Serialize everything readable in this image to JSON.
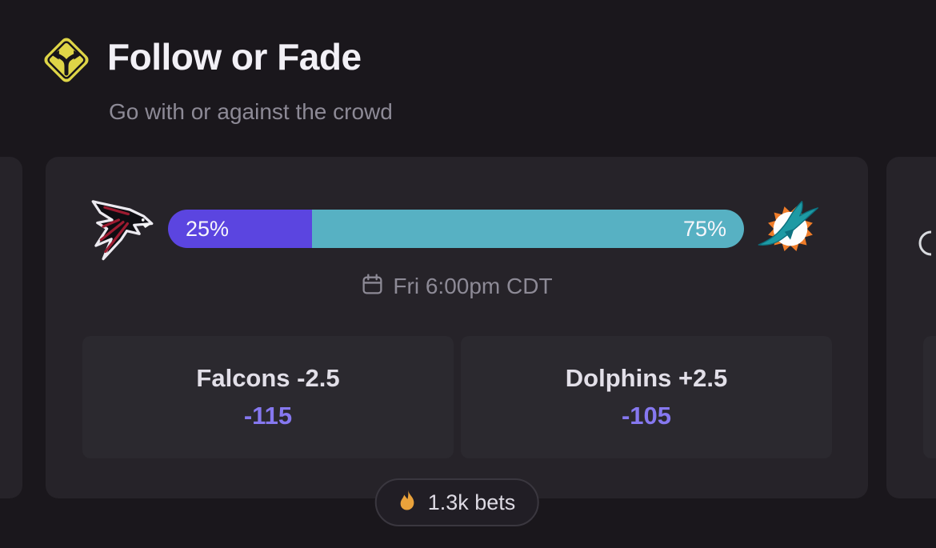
{
  "header": {
    "title": "Follow or Fade",
    "subtitle": "Go with or against the crowd"
  },
  "card": {
    "away_team": "Falcons",
    "home_team": "Dolphins",
    "away_logo": "atlanta-falcons",
    "home_logo": "miami-dolphins",
    "away_pct": 25,
    "home_pct": 75,
    "away_pct_label": "25%",
    "home_pct_label": "75%",
    "event_time": "Fri 6:00pm CDT",
    "options": [
      {
        "label": "Falcons -2.5",
        "odds": "-115"
      },
      {
        "label": "Dolphins +2.5",
        "odds": "-105"
      }
    ],
    "bets_label": "1.3k bets"
  },
  "colors": {
    "away_bar_purple": "#5b45e0",
    "home_bar_teal": "#57b1c3",
    "odds_purple": "#8678f0",
    "sign_yellow": "#ded547",
    "flame_orange": "#e9a23b",
    "falcons_red": "#9c1b30",
    "dolphins_aqua": "#1e9aa4",
    "dolphins_orange": "#ef7c28",
    "card_background": "#262329",
    "page_background": "#1a171c"
  }
}
